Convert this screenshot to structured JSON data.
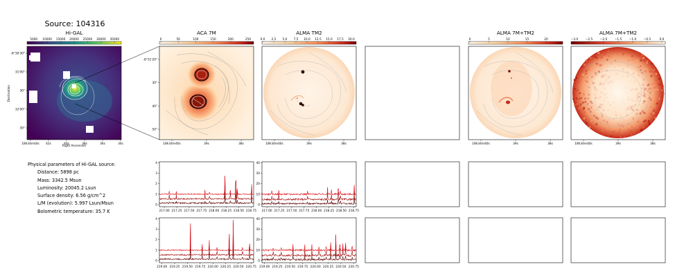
{
  "suptitle": "Source: 104316",
  "panel_titles": {
    "higal": "Hi-GAL",
    "aca": "ACA 7M",
    "tm2": "ALMA TM2",
    "combo": "ALMA 7M+TM2",
    "combo_ratio": "ALMA 7M+TM2"
  },
  "higal_axes": {
    "colorbar_ticks": [
      "5000",
      "10000",
      "15000",
      "20000",
      "25000",
      "30000",
      "35000"
    ],
    "y_ticks": [
      "-8°30'30\"",
      "31'00\"",
      "30\"",
      "32'00\"",
      "30\""
    ],
    "x_ticks": [
      "18h34m44s",
      "42s",
      "40s",
      "38s",
      "36s",
      "34s"
    ],
    "ylabel": "Declination",
    "xlabel": "Right Ascension"
  },
  "aca_axes": {
    "colorbar_ticks": [
      "0",
      "50",
      "100",
      "150",
      "200",
      "250"
    ],
    "y_ticks": [
      "-8°31'20\"",
      "30\"",
      "40\"",
      "50\""
    ],
    "x_ticks": [
      "18h34m40s",
      "39s",
      "38s"
    ]
  },
  "tm2_axes": {
    "colorbar_ticks": [
      "0.0",
      "2.5",
      "5.0",
      "7.5",
      "10.0",
      "12.5",
      "15.0",
      "17.5",
      "20.0"
    ],
    "x_ticks": [
      "18h34m40s",
      "39s",
      "38s"
    ]
  },
  "combo_axes": {
    "colorbar_ticks": [
      "0",
      "5",
      "10",
      "15",
      "20"
    ],
    "x_ticks": [
      "18h34m40s",
      "39s",
      "38s"
    ]
  },
  "combo_ratio_axes": {
    "colorbar_ticks": [
      "−3.0",
      "−2.5",
      "−2.0",
      "−1.5",
      "−1.0",
      "−0.5",
      "0.0"
    ],
    "x_ticks": [
      "18h34m40s",
      "39s",
      "38s"
    ]
  },
  "info": {
    "heading": "Physical parameters of Hi-GAL source:",
    "lines": [
      "Distance: 5898 pc",
      "Mass: 3342.5 Msun",
      "Luminosity: 20045.2 Lsun",
      "Surface density: 6.56 g/cm^2",
      "L/M (evolution): 5.997 Lsun/Msun",
      "Bolometric temperature: 35.7 K"
    ]
  },
  "colors": {
    "spectrum_dark": "#5a0000",
    "spectrum_mid": "#a00000",
    "spectrum_light": "#e0101a"
  },
  "chart_data": [
    {
      "type": "line",
      "panel": "ACA 7M spectrum window 1",
      "xlim": [
        216.9,
        218.8
      ],
      "ylim": [
        -0.2,
        4.1
      ],
      "x_ticks": [
        "217.00",
        "217.25",
        "217.50",
        "217.75",
        "218.00",
        "218.25",
        "218.50",
        "218.75"
      ],
      "y_ticks": [
        "0",
        "1",
        "2",
        "3",
        "4"
      ],
      "series": [
        {
          "baseline": 0.15,
          "noise": 0.07
        },
        {
          "baseline": 0.55,
          "noise": 0.06
        },
        {
          "baseline": 1.0,
          "noise": 0.05
        }
      ],
      "peaks": [
        {
          "x": 217.1,
          "h": 0.5
        },
        {
          "x": 217.24,
          "h": 0.4
        },
        {
          "x": 217.82,
          "h": 0.6
        },
        {
          "x": 217.91,
          "h": 0.5
        },
        {
          "x": 218.22,
          "h": 3.1
        },
        {
          "x": 218.33,
          "h": 0.9
        },
        {
          "x": 218.44,
          "h": 3.5
        },
        {
          "x": 218.47,
          "h": 1.1
        },
        {
          "x": 218.76,
          "h": 1.2
        }
      ]
    },
    {
      "type": "line",
      "panel": "ALMA TM2 spectrum window 1",
      "xlim": [
        216.9,
        218.8
      ],
      "ylim": [
        -2,
        41
      ],
      "x_ticks": [
        "217.00",
        "217.25",
        "217.50",
        "217.75",
        "218.00",
        "218.25",
        "218.50",
        "218.75"
      ],
      "y_ticks": [
        "0",
        "10",
        "20",
        "30",
        "40"
      ],
      "series": [
        {
          "baseline": 1.0,
          "noise": 0.8
        },
        {
          "baseline": 5.0,
          "noise": 0.9
        },
        {
          "baseline": 10.0,
          "noise": 0.8
        }
      ],
      "peaks": [
        {
          "x": 217.1,
          "h": 5
        },
        {
          "x": 217.24,
          "h": 6
        },
        {
          "x": 217.82,
          "h": 5
        },
        {
          "x": 218.22,
          "h": 11
        },
        {
          "x": 218.3,
          "h": 6
        },
        {
          "x": 218.44,
          "h": 14
        },
        {
          "x": 218.48,
          "h": 7
        },
        {
          "x": 218.76,
          "h": 12
        }
      ]
    },
    {
      "type": "line",
      "panel": "ACA 7M spectrum window 2",
      "xlim": [
        218.95,
        220.8
      ],
      "ylim": [
        -0.2,
        4.1
      ],
      "x_ticks": [
        "219.00",
        "219.25",
        "219.50",
        "219.75",
        "220.00",
        "220.25",
        "220.50",
        "220.75"
      ],
      "y_ticks": [
        "0",
        "1",
        "2",
        "3",
        "4"
      ],
      "series": [
        {
          "baseline": 0.15,
          "noise": 0.07
        },
        {
          "baseline": 0.55,
          "noise": 0.06
        },
        {
          "baseline": 1.0,
          "noise": 0.05
        }
      ],
      "peaks": [
        {
          "x": 219.56,
          "h": 3.6
        },
        {
          "x": 219.79,
          "h": 0.8
        },
        {
          "x": 219.93,
          "h": 1.4
        },
        {
          "x": 220.08,
          "h": 0.6
        },
        {
          "x": 220.32,
          "h": 2.8
        },
        {
          "x": 220.4,
          "h": 3.8
        },
        {
          "x": 220.58,
          "h": 0.7
        },
        {
          "x": 220.72,
          "h": 1.3
        }
      ]
    },
    {
      "type": "line",
      "panel": "ALMA TM2 spectrum window 2",
      "xlim": [
        218.95,
        220.8
      ],
      "ylim": [
        -2,
        41
      ],
      "x_ticks": [
        "219.00",
        "219.25",
        "219.50",
        "219.75",
        "220.00",
        "220.25",
        "220.50",
        "220.75"
      ],
      "y_ticks": [
        "0",
        "10",
        "20",
        "30",
        "40"
      ],
      "series": [
        {
          "baseline": 1.0,
          "noise": 0.8
        },
        {
          "baseline": 5.0,
          "noise": 0.9
        },
        {
          "baseline": 10.0,
          "noise": 0.8
        }
      ],
      "peaks": [
        {
          "x": 219.17,
          "h": 6
        },
        {
          "x": 219.33,
          "h": 5
        },
        {
          "x": 219.56,
          "h": 9
        },
        {
          "x": 219.79,
          "h": 6
        },
        {
          "x": 219.93,
          "h": 8
        },
        {
          "x": 220.07,
          "h": 7
        },
        {
          "x": 220.21,
          "h": 8
        },
        {
          "x": 220.3,
          "h": 12
        },
        {
          "x": 220.4,
          "h": 22
        },
        {
          "x": 220.48,
          "h": 14
        },
        {
          "x": 220.54,
          "h": 10
        },
        {
          "x": 220.59,
          "h": 12
        },
        {
          "x": 220.72,
          "h": 9
        }
      ]
    }
  ]
}
